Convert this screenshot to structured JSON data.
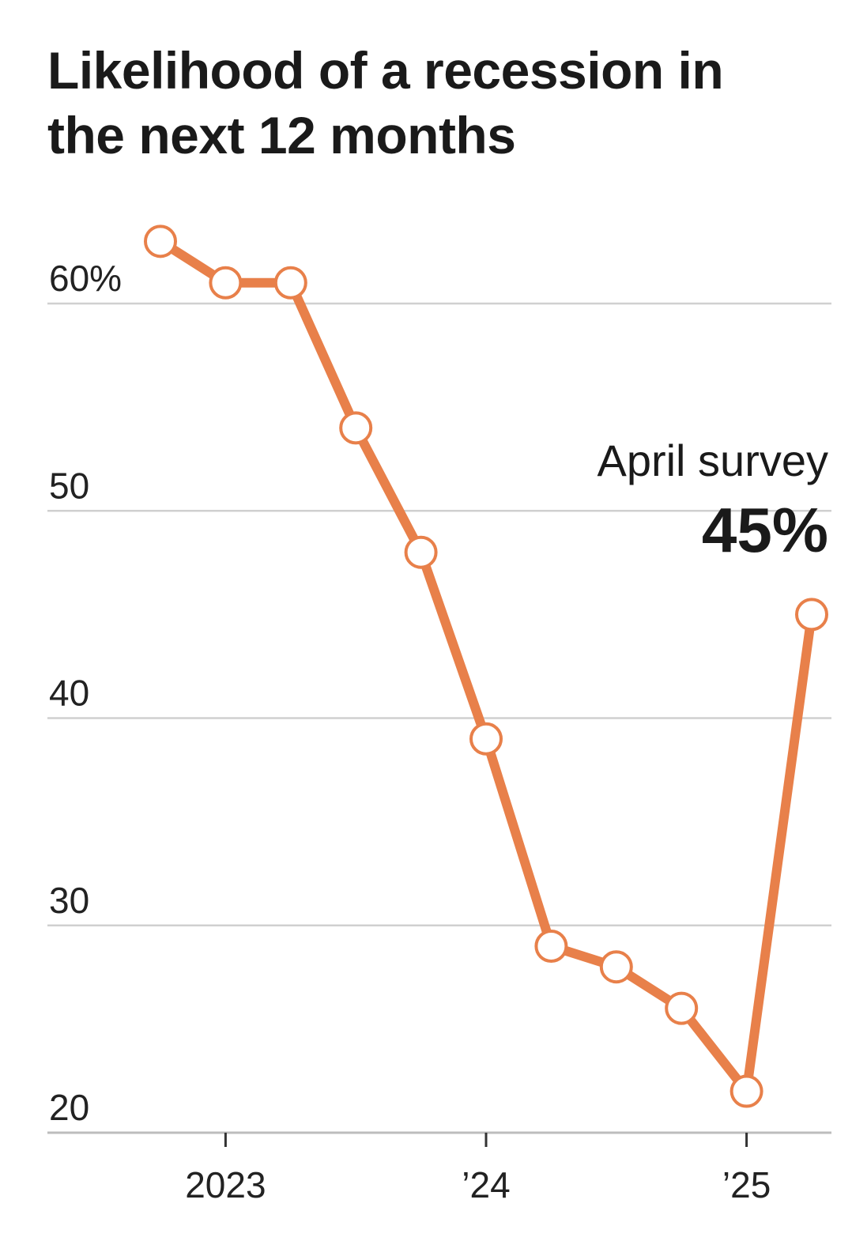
{
  "title": "Likelihood of a recession in the next 12 months",
  "annotation": {
    "label": "April survey",
    "value": "45%"
  },
  "colors": {
    "line": "#e8804a",
    "marker_fill": "#ffffff",
    "grid": "#d0d0d0",
    "axis": "#bdbdbd",
    "text": "#1a1a1a"
  },
  "chart_data": {
    "type": "line",
    "title": "Likelihood of a recession in the next 12 months",
    "xlabel": "",
    "ylabel": "",
    "x": [
      "2022-10",
      "2023-01",
      "2023-04",
      "2023-07",
      "2023-10",
      "2024-01",
      "2024-04",
      "2024-07",
      "2024-10",
      "2025-01",
      "2025-04"
    ],
    "values": [
      63,
      61,
      61,
      54,
      48,
      39,
      29,
      28,
      26,
      22,
      45
    ],
    "ylim": [
      20,
      63
    ],
    "yticks": [
      20,
      30,
      40,
      50,
      60
    ],
    "ytick_labels": [
      "20",
      "30",
      "40",
      "50",
      "60%"
    ],
    "xticks": [
      "2023-01",
      "2024-01",
      "2025-01"
    ],
    "xtick_labels": [
      "2023",
      "’24",
      "’25"
    ],
    "grid": true,
    "legend": "none"
  }
}
